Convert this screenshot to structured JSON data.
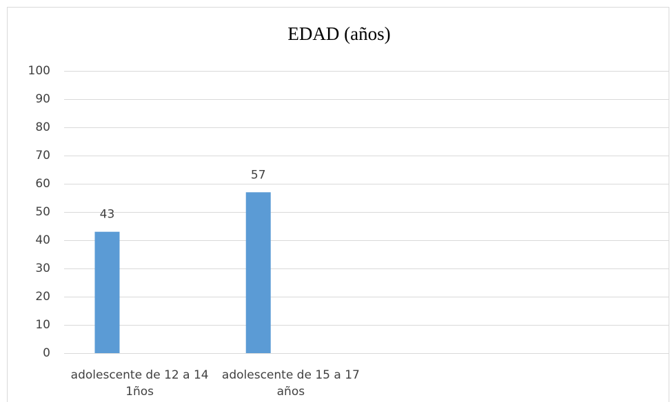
{
  "chart_data": {
    "type": "bar",
    "title": "EDAD (años)",
    "categories": [
      "adolescente de 12 a 14 1ños",
      "adolescente de 15 a 17 años",
      null,
      null
    ],
    "values": [
      43,
      57,
      null,
      null
    ],
    "color": "#5b9bd5",
    "ylim": [
      0,
      100
    ],
    "yticks": [
      0,
      10,
      20,
      30,
      40,
      50,
      60,
      70,
      80,
      90,
      100
    ],
    "grid": true
  }
}
